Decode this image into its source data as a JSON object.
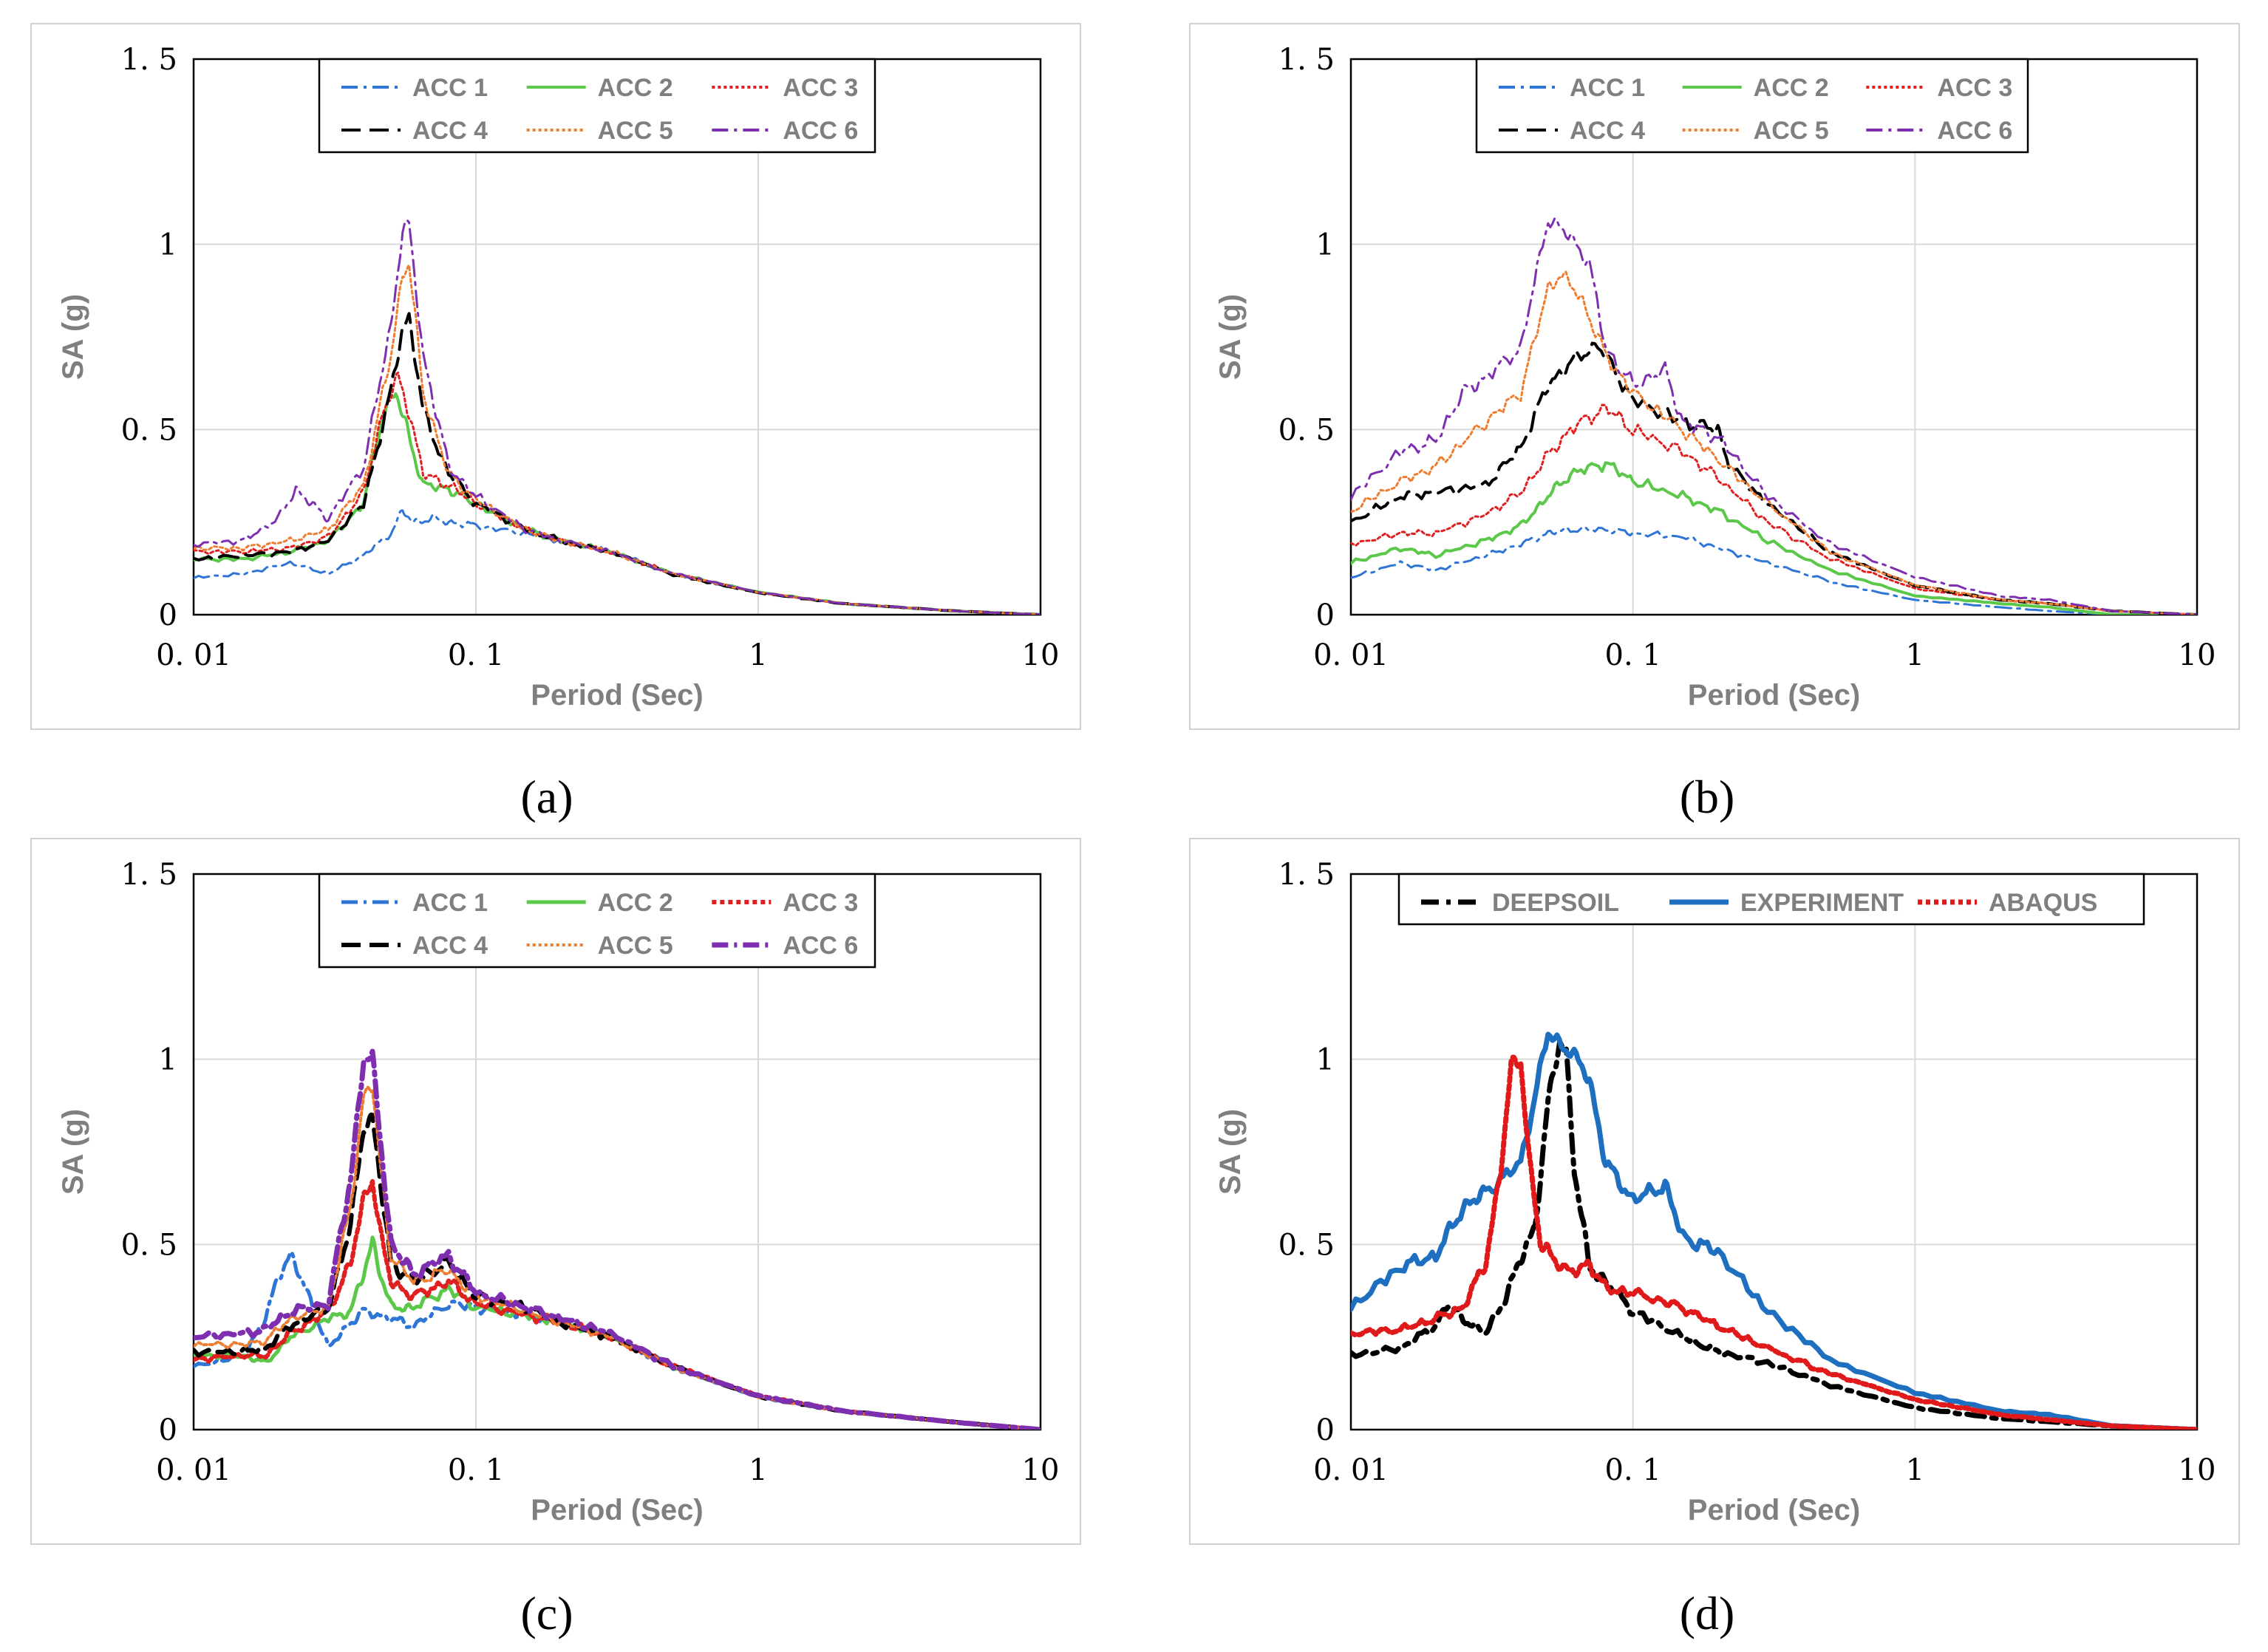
{
  "colors": {
    "acc1": "#2e75d6",
    "acc2": "#5bc84a",
    "acc3": "#e02020",
    "acc4": "#000000",
    "acc5": "#ed7d31",
    "acc6": "#7e2fb0",
    "deepsoil": "#000000",
    "experiment": "#1f6fc0",
    "abaqus": "#e01a1a",
    "grid": "#d9d9d9",
    "frame": "#d0d0d0"
  },
  "chart_data": [
    {
      "type": "line",
      "panel": "a",
      "caption": "(a)",
      "xlabel": "Period (Sec)",
      "ylabel": "SA (g)",
      "xscale": "log",
      "xlim": [
        0.01,
        10
      ],
      "ylim": [
        0,
        1.5
      ],
      "xticks": [
        "0. 01",
        "0. 1",
        "1",
        "10"
      ],
      "yticks": [
        "0",
        "0. 5",
        "1",
        "1. 5"
      ],
      "grid": true,
      "legend": "top-center",
      "series": [
        {
          "name": "ACC 1",
          "x": [
            0.01,
            0.015,
            0.022,
            0.03,
            0.04,
            0.05,
            0.055,
            0.06,
            0.07,
            0.08,
            0.1,
            0.15,
            0.2,
            0.3,
            0.5,
            1,
            2,
            5,
            10
          ],
          "y": [
            0.1,
            0.11,
            0.14,
            0.11,
            0.16,
            0.22,
            0.28,
            0.25,
            0.26,
            0.25,
            0.24,
            0.22,
            0.2,
            0.17,
            0.11,
            0.06,
            0.03,
            0.01,
            0.0
          ]
        },
        {
          "name": "ACC 2",
          "x": [
            0.01,
            0.015,
            0.022,
            0.03,
            0.04,
            0.047,
            0.052,
            0.057,
            0.065,
            0.08,
            0.1,
            0.15,
            0.2,
            0.3,
            0.5,
            1,
            2,
            5,
            10
          ],
          "y": [
            0.15,
            0.15,
            0.17,
            0.2,
            0.3,
            0.55,
            0.6,
            0.5,
            0.35,
            0.34,
            0.3,
            0.23,
            0.2,
            0.17,
            0.11,
            0.06,
            0.03,
            0.01,
            0.0
          ]
        },
        {
          "name": "ACC 3",
          "x": [
            0.01,
            0.015,
            0.022,
            0.03,
            0.04,
            0.047,
            0.053,
            0.058,
            0.065,
            0.08,
            0.1,
            0.15,
            0.2,
            0.3,
            0.5,
            1,
            2,
            5,
            10
          ],
          "y": [
            0.17,
            0.17,
            0.18,
            0.21,
            0.33,
            0.55,
            0.64,
            0.55,
            0.38,
            0.35,
            0.3,
            0.23,
            0.2,
            0.17,
            0.11,
            0.06,
            0.03,
            0.01,
            0.0
          ]
        },
        {
          "name": "ACC 4",
          "x": [
            0.01,
            0.015,
            0.022,
            0.03,
            0.04,
            0.05,
            0.055,
            0.058,
            0.065,
            0.08,
            0.1,
            0.15,
            0.2,
            0.3,
            0.5,
            1,
            2,
            5,
            10
          ],
          "y": [
            0.15,
            0.16,
            0.17,
            0.2,
            0.3,
            0.6,
            0.78,
            0.8,
            0.55,
            0.38,
            0.3,
            0.23,
            0.2,
            0.17,
            0.11,
            0.06,
            0.03,
            0.01,
            0.0
          ]
        },
        {
          "name": "ACC 5",
          "x": [
            0.01,
            0.015,
            0.022,
            0.03,
            0.04,
            0.05,
            0.055,
            0.058,
            0.065,
            0.08,
            0.1,
            0.15,
            0.2,
            0.3,
            0.5,
            1,
            2,
            5,
            10
          ],
          "y": [
            0.18,
            0.18,
            0.2,
            0.23,
            0.35,
            0.7,
            0.92,
            0.95,
            0.6,
            0.38,
            0.31,
            0.23,
            0.2,
            0.17,
            0.11,
            0.06,
            0.03,
            0.01,
            0.0
          ]
        },
        {
          "name": "ACC 6",
          "x": [
            0.01,
            0.015,
            0.02,
            0.023,
            0.026,
            0.03,
            0.04,
            0.05,
            0.055,
            0.058,
            0.065,
            0.08,
            0.1,
            0.15,
            0.2,
            0.3,
            0.5,
            1,
            2,
            5,
            10
          ],
          "y": [
            0.19,
            0.2,
            0.26,
            0.34,
            0.3,
            0.26,
            0.4,
            0.78,
            1.04,
            1.05,
            0.7,
            0.4,
            0.32,
            0.23,
            0.2,
            0.17,
            0.11,
            0.06,
            0.03,
            0.01,
            0.0
          ]
        }
      ]
    },
    {
      "type": "line",
      "panel": "b",
      "caption": "(b)",
      "xlabel": "Period (Sec)",
      "ylabel": "SA (g)",
      "xscale": "log",
      "xlim": [
        0.01,
        10
      ],
      "ylim": [
        0,
        1.5
      ],
      "xticks": [
        "0. 01",
        "0. 1",
        "1",
        "10"
      ],
      "yticks": [
        "0",
        "0. 5",
        "1",
        "1. 5"
      ],
      "grid": true,
      "legend": "top-center",
      "series": [
        {
          "name": "ACC 1",
          "x": [
            0.01,
            0.015,
            0.02,
            0.03,
            0.04,
            0.05,
            0.06,
            0.08,
            0.1,
            0.15,
            0.2,
            0.3,
            0.5,
            1,
            2,
            3,
            5,
            10
          ],
          "y": [
            0.1,
            0.14,
            0.12,
            0.16,
            0.19,
            0.22,
            0.23,
            0.23,
            0.22,
            0.21,
            0.18,
            0.14,
            0.09,
            0.04,
            0.02,
            0.01,
            0.0,
            0.0
          ]
        },
        {
          "name": "ACC 2",
          "x": [
            0.01,
            0.015,
            0.02,
            0.03,
            0.04,
            0.05,
            0.06,
            0.08,
            0.1,
            0.15,
            0.2,
            0.3,
            0.5,
            1,
            2,
            3,
            5,
            10
          ],
          "y": [
            0.14,
            0.18,
            0.16,
            0.2,
            0.24,
            0.32,
            0.38,
            0.41,
            0.36,
            0.32,
            0.28,
            0.2,
            0.12,
            0.05,
            0.03,
            0.02,
            0.0,
            0.0
          ]
        },
        {
          "name": "ACC 3",
          "x": [
            0.01,
            0.015,
            0.02,
            0.03,
            0.04,
            0.05,
            0.06,
            0.08,
            0.1,
            0.15,
            0.2,
            0.3,
            0.5,
            1,
            2,
            3,
            5,
            10
          ],
          "y": [
            0.19,
            0.22,
            0.22,
            0.27,
            0.33,
            0.43,
            0.5,
            0.56,
            0.5,
            0.44,
            0.37,
            0.25,
            0.15,
            0.07,
            0.04,
            0.03,
            0.01,
            0.0
          ]
        },
        {
          "name": "ACC 4",
          "x": [
            0.01,
            0.015,
            0.02,
            0.03,
            0.04,
            0.05,
            0.06,
            0.075,
            0.1,
            0.15,
            0.2,
            0.22,
            0.3,
            0.5,
            1,
            2,
            3,
            5,
            10
          ],
          "y": [
            0.25,
            0.32,
            0.33,
            0.35,
            0.45,
            0.62,
            0.68,
            0.73,
            0.58,
            0.52,
            0.5,
            0.4,
            0.3,
            0.17,
            0.08,
            0.04,
            0.03,
            0.01,
            0.0
          ]
        },
        {
          "name": "ACC 5",
          "x": [
            0.01,
            0.015,
            0.02,
            0.03,
            0.04,
            0.05,
            0.055,
            0.065,
            0.08,
            0.1,
            0.15,
            0.2,
            0.3,
            0.5,
            1,
            2,
            3,
            5,
            10
          ],
          "y": [
            0.28,
            0.36,
            0.4,
            0.52,
            0.6,
            0.88,
            0.92,
            0.86,
            0.7,
            0.6,
            0.5,
            0.42,
            0.3,
            0.17,
            0.08,
            0.04,
            0.03,
            0.01,
            0.0
          ]
        },
        {
          "name": "ACC 6",
          "x": [
            0.01,
            0.015,
            0.02,
            0.025,
            0.03,
            0.04,
            0.05,
            0.06,
            0.07,
            0.08,
            0.1,
            0.13,
            0.15,
            0.2,
            0.3,
            0.5,
            1,
            2,
            3,
            5,
            10
          ],
          "y": [
            0.32,
            0.44,
            0.47,
            0.6,
            0.64,
            0.72,
            1.07,
            1.02,
            0.95,
            0.72,
            0.62,
            0.66,
            0.52,
            0.48,
            0.32,
            0.19,
            0.1,
            0.05,
            0.04,
            0.01,
            0.0
          ]
        }
      ]
    },
    {
      "type": "line",
      "panel": "c",
      "caption": "(c)",
      "xlabel": "Period (Sec)",
      "ylabel": "SA (g)",
      "xscale": "log",
      "xlim": [
        0.01,
        10
      ],
      "ylim": [
        0,
        1.5
      ],
      "xticks": [
        "0. 01",
        "0. 1",
        "1",
        "10"
      ],
      "yticks": [
        "0",
        "0. 5",
        "1",
        "1. 5"
      ],
      "grid": true,
      "legend": "top-center",
      "series": [
        {
          "name": "ACC 1",
          "x": [
            0.01,
            0.015,
            0.018,
            0.02,
            0.022,
            0.025,
            0.03,
            0.035,
            0.04,
            0.05,
            0.06,
            0.08,
            0.1,
            0.15,
            0.2,
            0.3,
            0.5,
            1,
            2,
            5,
            10
          ],
          "y": [
            0.17,
            0.2,
            0.3,
            0.42,
            0.47,
            0.38,
            0.22,
            0.28,
            0.32,
            0.3,
            0.28,
            0.34,
            0.33,
            0.31,
            0.29,
            0.25,
            0.17,
            0.09,
            0.05,
            0.02,
            0.0
          ]
        },
        {
          "name": "ACC 2",
          "x": [
            0.01,
            0.015,
            0.018,
            0.022,
            0.03,
            0.036,
            0.04,
            0.043,
            0.046,
            0.05,
            0.06,
            0.08,
            0.1,
            0.15,
            0.2,
            0.3,
            0.5,
            1,
            2,
            5,
            10
          ],
          "y": [
            0.2,
            0.2,
            0.18,
            0.25,
            0.3,
            0.32,
            0.42,
            0.51,
            0.42,
            0.33,
            0.33,
            0.38,
            0.33,
            0.31,
            0.29,
            0.25,
            0.17,
            0.09,
            0.05,
            0.02,
            0.0
          ]
        },
        {
          "name": "ACC 3",
          "x": [
            0.01,
            0.015,
            0.018,
            0.022,
            0.03,
            0.036,
            0.04,
            0.043,
            0.046,
            0.05,
            0.06,
            0.08,
            0.1,
            0.15,
            0.2,
            0.3,
            0.5,
            1,
            2,
            5,
            10
          ],
          "y": [
            0.19,
            0.2,
            0.2,
            0.26,
            0.32,
            0.45,
            0.62,
            0.68,
            0.52,
            0.4,
            0.36,
            0.4,
            0.34,
            0.31,
            0.29,
            0.25,
            0.17,
            0.09,
            0.05,
            0.02,
            0.0
          ]
        },
        {
          "name": "ACC 4",
          "x": [
            0.01,
            0.015,
            0.018,
            0.022,
            0.03,
            0.036,
            0.04,
            0.043,
            0.046,
            0.05,
            0.06,
            0.08,
            0.1,
            0.15,
            0.2,
            0.3,
            0.5,
            1,
            2,
            5,
            10
          ],
          "y": [
            0.21,
            0.21,
            0.22,
            0.28,
            0.33,
            0.55,
            0.82,
            0.84,
            0.66,
            0.45,
            0.4,
            0.45,
            0.36,
            0.33,
            0.29,
            0.25,
            0.17,
            0.09,
            0.05,
            0.02,
            0.0
          ]
        },
        {
          "name": "ACC 5",
          "x": [
            0.01,
            0.015,
            0.018,
            0.022,
            0.03,
            0.036,
            0.04,
            0.043,
            0.046,
            0.05,
            0.06,
            0.08,
            0.1,
            0.15,
            0.2,
            0.3,
            0.5,
            1,
            2,
            5,
            10
          ],
          "y": [
            0.23,
            0.23,
            0.24,
            0.3,
            0.33,
            0.6,
            0.9,
            0.93,
            0.7,
            0.47,
            0.4,
            0.43,
            0.36,
            0.32,
            0.29,
            0.25,
            0.17,
            0.09,
            0.05,
            0.02,
            0.0
          ]
        },
        {
          "name": "ACC 6",
          "x": [
            0.01,
            0.015,
            0.018,
            0.022,
            0.03,
            0.036,
            0.04,
            0.043,
            0.046,
            0.05,
            0.06,
            0.08,
            0.1,
            0.15,
            0.2,
            0.3,
            0.5,
            1,
            2,
            5,
            10
          ],
          "y": [
            0.25,
            0.26,
            0.27,
            0.32,
            0.34,
            0.68,
            1.0,
            1.0,
            0.78,
            0.5,
            0.42,
            0.47,
            0.37,
            0.33,
            0.3,
            0.26,
            0.17,
            0.09,
            0.05,
            0.02,
            0.0
          ]
        }
      ]
    },
    {
      "type": "line",
      "panel": "d",
      "caption": "(d)",
      "xlabel": "Period (Sec)",
      "ylabel": "SA (g)",
      "xscale": "log",
      "xlim": [
        0.01,
        10
      ],
      "ylim": [
        0,
        1.5
      ],
      "xticks": [
        "0. 01",
        "0. 1",
        "1",
        "10"
      ],
      "yticks": [
        "0",
        "0. 5",
        "1",
        "1. 5"
      ],
      "grid": true,
      "legend": "top-center",
      "series": [
        {
          "name": "DEEPSOIL",
          "x": [
            0.01,
            0.015,
            0.02,
            0.022,
            0.025,
            0.03,
            0.035,
            0.04,
            0.045,
            0.05,
            0.055,
            0.058,
            0.062,
            0.07,
            0.08,
            0.1,
            0.15,
            0.2,
            0.3,
            0.5,
            1,
            2,
            5,
            10
          ],
          "y": [
            0.2,
            0.22,
            0.28,
            0.34,
            0.3,
            0.26,
            0.35,
            0.46,
            0.55,
            0.88,
            1.05,
            1.02,
            0.7,
            0.44,
            0.4,
            0.32,
            0.25,
            0.21,
            0.18,
            0.12,
            0.06,
            0.03,
            0.01,
            0.0
          ]
        },
        {
          "name": "EXPERIMENT",
          "x": [
            0.01,
            0.015,
            0.02,
            0.025,
            0.03,
            0.04,
            0.05,
            0.06,
            0.07,
            0.08,
            0.1,
            0.13,
            0.15,
            0.2,
            0.3,
            0.5,
            1,
            2,
            3,
            5,
            10
          ],
          "y": [
            0.33,
            0.44,
            0.47,
            0.6,
            0.64,
            0.72,
            1.07,
            1.02,
            0.95,
            0.72,
            0.62,
            0.66,
            0.52,
            0.48,
            0.32,
            0.19,
            0.1,
            0.05,
            0.04,
            0.01,
            0.0
          ]
        },
        {
          "name": "ABAQUS",
          "x": [
            0.01,
            0.015,
            0.02,
            0.025,
            0.03,
            0.034,
            0.037,
            0.04,
            0.043,
            0.047,
            0.05,
            0.06,
            0.07,
            0.08,
            0.1,
            0.15,
            0.2,
            0.3,
            0.5,
            1,
            2,
            5,
            10
          ],
          "y": [
            0.26,
            0.27,
            0.3,
            0.33,
            0.45,
            0.7,
            0.98,
            1.0,
            0.72,
            0.5,
            0.48,
            0.42,
            0.45,
            0.38,
            0.37,
            0.33,
            0.28,
            0.22,
            0.15,
            0.08,
            0.04,
            0.01,
            0.0
          ]
        }
      ]
    }
  ]
}
